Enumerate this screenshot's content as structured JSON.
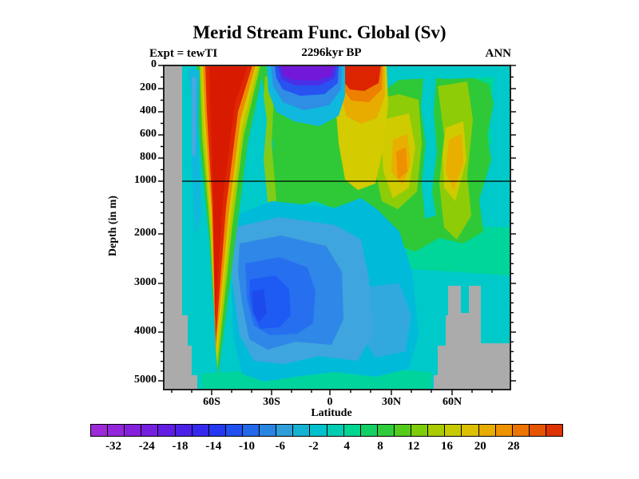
{
  "header": {
    "title": "Merid Stream Func. Global (Sv)",
    "experiment_label": "Expt = tewTI",
    "time_label": "2296kyr BP",
    "season_label": "ANN"
  },
  "axes": {
    "x": {
      "label": "Latitude",
      "ticks": [
        "60S",
        "30S",
        "0",
        "30N",
        "60N"
      ]
    },
    "y": {
      "label": "Depth (in m)",
      "ticks": [
        "0",
        "200",
        "400",
        "600",
        "800",
        "1000",
        "2000",
        "3000",
        "4000",
        "5000"
      ]
    }
  },
  "colorbar": {
    "labels": [
      "-32",
      "-24",
      "-18",
      "-14",
      "-10",
      "-6",
      "-2",
      "4",
      "8",
      "12",
      "16",
      "20",
      "28"
    ],
    "colors": [
      "#9C2AD8",
      "#9326DA",
      "#8521DC",
      "#7520DE",
      "#611EE2",
      "#4B21E8",
      "#3629EE",
      "#2438F2",
      "#2050F0",
      "#2468EA",
      "#2A84E2",
      "#2F9ED8",
      "#16B2D4",
      "#00C2CC",
      "#00CDB2",
      "#00D592",
      "#12D066",
      "#2ECC3C",
      "#54CC1E",
      "#7ECC0C",
      "#A8CC00",
      "#C8CA00",
      "#DCC000",
      "#E8AC00",
      "#EE9200",
      "#EC7400",
      "#E65400",
      "#DE3200"
    ]
  },
  "chart_data": {
    "type": "heatmap",
    "title": "Merid Stream Func. Global (Sv)",
    "subtitle": "2296kyr BP",
    "experiment": "tewTI",
    "season": "ANN",
    "units": "Sv",
    "xlabel": "Latitude",
    "x_tick_labels": [
      "60S",
      "30S",
      "0",
      "30N",
      "60N"
    ],
    "x_range": [
      "~84S",
      "~89N"
    ],
    "ylabel": "Depth (in m)",
    "y_tick_labels_m": [
      0,
      200,
      400,
      600,
      800,
      1000,
      2000,
      3000,
      4000,
      5000
    ],
    "y_scale": "split axis: 0-1000 m expanded in upper half, 1000-5000 m compressed in lower half, horizontal divider line drawn at 1000 m",
    "colorbar_tick_labels": [
      -32,
      -24,
      -18,
      -14,
      -10,
      -6,
      -2,
      4,
      8,
      12,
      16,
      20,
      28
    ],
    "palette": "discrete spectral bands purple > blue > cyan > green > yellow > orange > red, ~28 bands",
    "background_value_sv": "-2 to 2 (teal)",
    "land_mask_color": "#ABABAB",
    "features": [
      {
        "name": "southern positive overturning cell",
        "sign": "positive",
        "lat": "~70S-45S",
        "depth_m": "0-4300",
        "peak_sv": ">28",
        "note": "red core near surface 60S-50S narrowing to a V shape with depth"
      },
      {
        "name": "southern tropical surface cell",
        "sign": "negative",
        "lat": "~25S-2N",
        "depth_m": "0-400",
        "peak_sv": "<=-32",
        "note": "purple core hugging the surface, blue/cyan halo below"
      },
      {
        "name": "northern tropical surface cell",
        "sign": "positive",
        "lat": "~2N-20N",
        "depth_m": "0-300",
        "peak_sv": ">28",
        "note": "red surface core just north of equator with yellow column to ~1000 m"
      },
      {
        "name": "mid-depth positive cell",
        "sign": "positive",
        "lat": "30S-75N",
        "depth_m": "150-1500",
        "peak_sv": "8-16",
        "note": "broad green region with yellow/orange maxima near 25N-35N and 45N-55N"
      },
      {
        "name": "deep negative cell",
        "sign": "negative",
        "lat": "45S-10N",
        "depth_m": "2200-4800",
        "peak_sv": "-12 to -14",
        "note": "blue core near 35S-25S at 3000-4000 m"
      },
      {
        "name": "antarctic margin negative filament",
        "sign": "negative",
        "lat": "~66S",
        "depth_m": "0-2500",
        "peak_sv": "-4 to -6"
      }
    ],
    "masked_regions": [
      {
        "name": "antarctic margin",
        "lat": "south of ~75S",
        "extent": "full depth, widening slightly toward the bottom"
      },
      {
        "name": "northern bathymetry",
        "lat": "~50N-85N",
        "extent": "below ~3000-3800 m, stepped profile with two ridge towers and a notch between them"
      }
    ]
  }
}
